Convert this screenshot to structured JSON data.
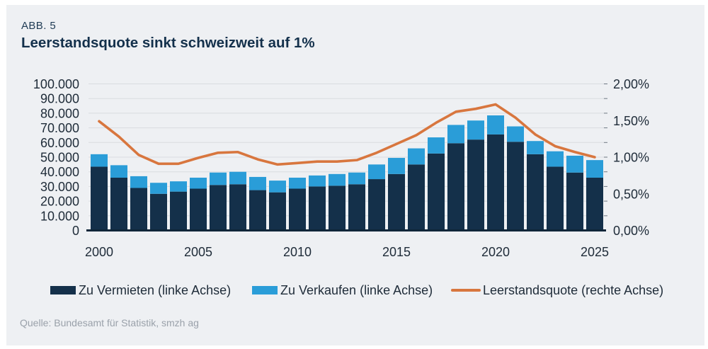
{
  "figure": {
    "label": "ABB. 5",
    "title": "Leerstandsquote sinkt schweizweit auf 1%",
    "source": "Quelle: Bundesamt für Statistik, smzh ag"
  },
  "legend": [
    {
      "label": "Zu Vermieten (linke Achse)",
      "swatch": "#14304A",
      "shape": "rect"
    },
    {
      "label": "Zu Verkaufen (linke Achse)",
      "swatch": "#2A9DD8",
      "shape": "rect"
    },
    {
      "label": "Leerstandsquote (rechte Achse)",
      "swatch": "#D8763E",
      "shape": "line"
    }
  ],
  "chart_data": {
    "type": "bar",
    "subtype": "stacked-bars-with-line-overlay",
    "years": [
      2000,
      2001,
      2002,
      2003,
      2004,
      2005,
      2006,
      2007,
      2008,
      2009,
      2010,
      2011,
      2012,
      2013,
      2014,
      2015,
      2016,
      2017,
      2018,
      2019,
      2020,
      2021,
      2022,
      2023,
      2024,
      2025
    ],
    "series": [
      {
        "name": "Zu Vermieten (linke Achse)",
        "axis": "left",
        "color": "#14304A",
        "values": [
          43500,
          36000,
          29000,
          25000,
          26500,
          28500,
          31000,
          31500,
          27500,
          26000,
          28500,
          30000,
          30500,
          31500,
          35000,
          38500,
          45000,
          52500,
          59500,
          62000,
          65500,
          60500,
          52000,
          43500,
          39500,
          36000
        ]
      },
      {
        "name": "Zu Verkaufen (linke Achse)",
        "axis": "left",
        "color": "#2A9DD8",
        "values": [
          8500,
          8500,
          8000,
          7500,
          7000,
          7500,
          8500,
          8500,
          9000,
          8000,
          7500,
          7500,
          8000,
          8000,
          10000,
          11000,
          11000,
          11000,
          12500,
          13000,
          13000,
          10500,
          9000,
          10500,
          11500,
          12000
        ]
      },
      {
        "name": "Leerstandsquote (rechte Achse)",
        "axis": "right",
        "color": "#D8763E",
        "values": [
          1.49,
          1.28,
          1.03,
          0.91,
          0.91,
          0.99,
          1.06,
          1.07,
          0.97,
          0.9,
          0.92,
          0.94,
          0.94,
          0.96,
          1.06,
          1.18,
          1.3,
          1.47,
          1.62,
          1.66,
          1.72,
          1.54,
          1.31,
          1.15,
          1.07,
          1.0
        ]
      }
    ],
    "left_axis": {
      "min": 0,
      "max": 100000,
      "tick_step": 10000,
      "tick_values": [
        0,
        10000,
        20000,
        30000,
        40000,
        50000,
        60000,
        70000,
        80000,
        90000,
        100000
      ],
      "tick_labels": [
        "0",
        "10.000",
        "20.000",
        "30.000",
        "40.000",
        "50.000",
        "60.000",
        "70.000",
        "80.000",
        "90.000",
        "100.000"
      ]
    },
    "right_axis": {
      "min": 0,
      "max": 2,
      "tick_step": 0.5,
      "tick_values": [
        0,
        0.5,
        1,
        1.5,
        2
      ],
      "tick_labels": [
        "0,00%",
        "0,50%",
        "1,00%",
        "1,50%",
        "2,00%"
      ]
    },
    "x_axis": {
      "tick_years": [
        2000,
        2005,
        2010,
        2015,
        2020,
        2025
      ],
      "tick_labels": [
        "2000",
        "2005",
        "2010",
        "2015",
        "2020",
        "2025"
      ]
    },
    "style": {
      "grid_color": "#D9DCE0",
      "axis_color": "#0F2639",
      "tick_color": "#6E7882",
      "background": "#EEF0F3",
      "grid": "on",
      "legend_position": "bottom"
    }
  }
}
